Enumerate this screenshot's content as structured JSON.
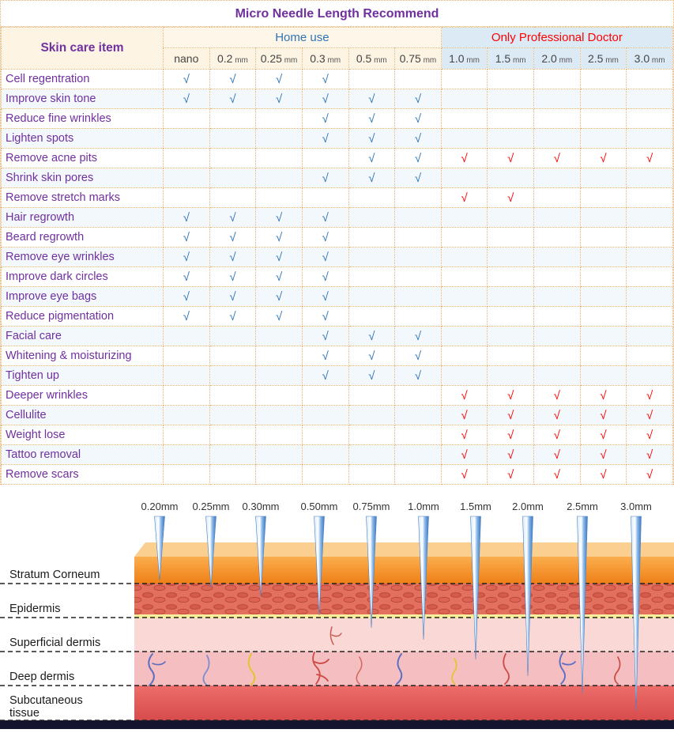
{
  "title": "Micro Needle Length Recommend",
  "chart_data": {
    "type": "table",
    "title": "Micro Needle Length Recommend",
    "corner_header": "Skin care item",
    "check_symbol": "√",
    "groups": [
      {
        "label": "Home use",
        "columns": [
          "nano",
          "0.2 mm",
          "0.25 mm",
          "0.3 mm",
          "0.5 mm",
          "0.75 mm"
        ],
        "check_color": "#2E74B5"
      },
      {
        "label": "Only Professional Doctor",
        "columns": [
          "1.0 mm",
          "1.5 mm",
          "2.0 mm",
          "2.5 mm",
          "3.0 mm"
        ],
        "check_color": "#FF0000"
      }
    ],
    "rows": [
      {
        "label": "Cell regentration",
        "checks": [
          1,
          1,
          1,
          1,
          0,
          0,
          0,
          0,
          0,
          0,
          0
        ]
      },
      {
        "label": "Improve skin tone",
        "checks": [
          1,
          1,
          1,
          1,
          1,
          1,
          0,
          0,
          0,
          0,
          0
        ]
      },
      {
        "label": "Reduce fine wrinkles",
        "checks": [
          0,
          0,
          0,
          1,
          1,
          1,
          0,
          0,
          0,
          0,
          0
        ]
      },
      {
        "label": "Lighten spots",
        "checks": [
          0,
          0,
          0,
          1,
          1,
          1,
          0,
          0,
          0,
          0,
          0
        ]
      },
      {
        "label": "Remove acne pits",
        "checks": [
          0,
          0,
          0,
          0,
          1,
          1,
          1,
          1,
          1,
          1,
          1
        ]
      },
      {
        "label": "Shrink skin pores",
        "checks": [
          0,
          0,
          0,
          1,
          1,
          1,
          0,
          0,
          0,
          0,
          0
        ]
      },
      {
        "label": "Remove stretch marks",
        "checks": [
          0,
          0,
          0,
          0,
          0,
          0,
          1,
          1,
          0,
          0,
          0
        ]
      },
      {
        "label": "Hair regrowth",
        "checks": [
          1,
          1,
          1,
          1,
          0,
          0,
          0,
          0,
          0,
          0,
          0
        ]
      },
      {
        "label": "Beard regrowth",
        "checks": [
          1,
          1,
          1,
          1,
          0,
          0,
          0,
          0,
          0,
          0,
          0
        ]
      },
      {
        "label": "Remove eye wrinkles",
        "checks": [
          1,
          1,
          1,
          1,
          0,
          0,
          0,
          0,
          0,
          0,
          0
        ]
      },
      {
        "label": "Improve dark circles",
        "checks": [
          1,
          1,
          1,
          1,
          0,
          0,
          0,
          0,
          0,
          0,
          0
        ]
      },
      {
        "label": "Improve eye bags",
        "checks": [
          1,
          1,
          1,
          1,
          0,
          0,
          0,
          0,
          0,
          0,
          0
        ]
      },
      {
        "label": "Reduce pigmentation",
        "checks": [
          1,
          1,
          1,
          1,
          0,
          0,
          0,
          0,
          0,
          0,
          0
        ]
      },
      {
        "label": "Facial care",
        "checks": [
          0,
          0,
          0,
          1,
          1,
          1,
          0,
          0,
          0,
          0,
          0
        ]
      },
      {
        "label": "Whitening & moisturizing",
        "checks": [
          0,
          0,
          0,
          1,
          1,
          1,
          0,
          0,
          0,
          0,
          0
        ]
      },
      {
        "label": "Tighten up",
        "checks": [
          0,
          0,
          0,
          1,
          1,
          1,
          0,
          0,
          0,
          0,
          0
        ]
      },
      {
        "label": "Deeper wrinkles",
        "checks": [
          0,
          0,
          0,
          0,
          0,
          0,
          1,
          1,
          1,
          1,
          1
        ]
      },
      {
        "label": "Cellulite",
        "checks": [
          0,
          0,
          0,
          0,
          0,
          0,
          1,
          1,
          1,
          1,
          1
        ]
      },
      {
        "label": "Weight lose",
        "checks": [
          0,
          0,
          0,
          0,
          0,
          0,
          1,
          1,
          1,
          1,
          1
        ]
      },
      {
        "label": "Tattoo removal",
        "checks": [
          0,
          0,
          0,
          0,
          0,
          0,
          1,
          1,
          1,
          1,
          1
        ]
      },
      {
        "label": "Remove scars",
        "checks": [
          0,
          0,
          0,
          0,
          0,
          0,
          1,
          1,
          1,
          1,
          1
        ]
      }
    ]
  },
  "diagram": {
    "needle_labels": [
      "0.20mm",
      "0.25mm",
      "0.30mm",
      "0.50mm",
      "0.75mm",
      "1.0mm",
      "1.5mm",
      "2.0mm",
      "2.5mm",
      "3.0mm"
    ],
    "layer_labels": [
      "Stratum Corneum",
      "Epidermis",
      "Superficial dermis",
      "Deep dermis",
      "Subcutaneous tissue"
    ]
  },
  "colors": {
    "title_text": "#7030A0",
    "row_label_text": "#7030A0",
    "home_header_text": "#2E74B5",
    "pro_header_text": "#FF0000",
    "home_check": "#2E74B5",
    "pro_check": "#FF0000",
    "home_header_bg": "#FDF4E3",
    "pro_header_bg": "#DCEAF6",
    "grid_line": "#EFB26E",
    "stripe": "#F3F8FD"
  }
}
